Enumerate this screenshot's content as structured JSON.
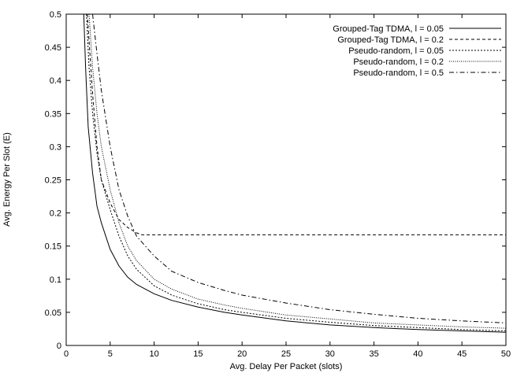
{
  "chart_data": {
    "type": "line",
    "title": "",
    "xlabel": "Avg. Delay Per Packet (slots)",
    "ylabel": "Avg. Energy Per Slot (E)",
    "xlim": [
      0,
      50
    ],
    "ylim": [
      0,
      0.5
    ],
    "xticks": [
      0,
      5,
      10,
      15,
      20,
      25,
      30,
      35,
      40,
      45,
      50
    ],
    "yticks": [
      0,
      0.05,
      0.1,
      0.15,
      0.2,
      0.25,
      0.3,
      0.35,
      0.4,
      0.45,
      0.5
    ],
    "xtick_labels": [
      "0",
      "5",
      "10",
      "15",
      "20",
      "25",
      "30",
      "35",
      "40",
      "45",
      "50"
    ],
    "ytick_labels": [
      "0",
      "0.05",
      "0.1",
      "0.15",
      "0.2",
      "0.25",
      "0.3",
      "0.35",
      "0.4",
      "0.45",
      "0.5"
    ],
    "grid": false,
    "legend_position": "top-right",
    "series": [
      {
        "name": "Grouped-Tag TDMA, l = 0.05",
        "dash": "solid",
        "points": [
          [
            2.0,
            0.5
          ],
          [
            2.2,
            0.42
          ],
          [
            2.5,
            0.33
          ],
          [
            3.0,
            0.26
          ],
          [
            3.5,
            0.21
          ],
          [
            4.0,
            0.185
          ],
          [
            5.0,
            0.145
          ],
          [
            6.0,
            0.12
          ],
          [
            7.0,
            0.103
          ],
          [
            8.0,
            0.092
          ],
          [
            10.0,
            0.078
          ],
          [
            12.0,
            0.068
          ],
          [
            15.0,
            0.058
          ],
          [
            18.0,
            0.05
          ],
          [
            20.0,
            0.046
          ],
          [
            25.0,
            0.037
          ],
          [
            30.0,
            0.031
          ],
          [
            35.0,
            0.027
          ],
          [
            40.0,
            0.024
          ],
          [
            45.0,
            0.022
          ],
          [
            50.0,
            0.02
          ]
        ]
      },
      {
        "name": "Grouped-Tag TDMA, l = 0.2",
        "dash": "dashed",
        "points": [
          [
            2.4,
            0.5
          ],
          [
            3.0,
            0.38
          ],
          [
            3.5,
            0.3
          ],
          [
            4.0,
            0.25
          ],
          [
            5.0,
            0.215
          ],
          [
            6.0,
            0.19
          ],
          [
            7.0,
            0.178
          ],
          [
            8.0,
            0.17
          ],
          [
            8.6,
            0.167
          ],
          [
            10.0,
            0.167
          ],
          [
            20.0,
            0.167
          ],
          [
            30.0,
            0.167
          ],
          [
            40.0,
            0.167
          ],
          [
            50.0,
            0.167
          ]
        ]
      },
      {
        "name": "Pseudo-random, l = 0.05",
        "dash": "dotted",
        "points": [
          [
            2.3,
            0.5
          ],
          [
            2.6,
            0.42
          ],
          [
            3.0,
            0.35
          ],
          [
            3.5,
            0.29
          ],
          [
            4.0,
            0.25
          ],
          [
            5.0,
            0.205
          ],
          [
            6.0,
            0.165
          ],
          [
            7.0,
            0.135
          ],
          [
            8.0,
            0.115
          ],
          [
            10.0,
            0.09
          ],
          [
            12.0,
            0.076
          ],
          [
            15.0,
            0.063
          ],
          [
            18.0,
            0.054
          ],
          [
            20.0,
            0.05
          ],
          [
            25.0,
            0.041
          ],
          [
            30.0,
            0.035
          ],
          [
            35.0,
            0.03
          ],
          [
            40.0,
            0.027
          ],
          [
            45.0,
            0.024
          ],
          [
            50.0,
            0.022
          ]
        ]
      },
      {
        "name": "Pseudo-random, l = 0.2",
        "dash": "fine-dotted",
        "points": [
          [
            2.6,
            0.5
          ],
          [
            3.0,
            0.42
          ],
          [
            3.5,
            0.35
          ],
          [
            4.0,
            0.3
          ],
          [
            5.0,
            0.235
          ],
          [
            6.0,
            0.185
          ],
          [
            7.0,
            0.15
          ],
          [
            8.0,
            0.128
          ],
          [
            10.0,
            0.1
          ],
          [
            12.0,
            0.085
          ],
          [
            15.0,
            0.07
          ],
          [
            18.0,
            0.061
          ],
          [
            20.0,
            0.056
          ],
          [
            25.0,
            0.046
          ],
          [
            30.0,
            0.04
          ],
          [
            35.0,
            0.034
          ],
          [
            40.0,
            0.031
          ],
          [
            45.0,
            0.028
          ],
          [
            50.0,
            0.026
          ]
        ]
      },
      {
        "name": "Pseudo-random, l =  0.5",
        "dash": "dash-dot",
        "points": [
          [
            3.0,
            0.5
          ],
          [
            3.5,
            0.44
          ],
          [
            4.0,
            0.385
          ],
          [
            5.0,
            0.3
          ],
          [
            6.0,
            0.235
          ],
          [
            7.0,
            0.195
          ],
          [
            8.0,
            0.165
          ],
          [
            10.0,
            0.135
          ],
          [
            12.0,
            0.112
          ],
          [
            15.0,
            0.095
          ],
          [
            18.0,
            0.083
          ],
          [
            20.0,
            0.076
          ],
          [
            25.0,
            0.064
          ],
          [
            30.0,
            0.054
          ],
          [
            35.0,
            0.047
          ],
          [
            40.0,
            0.041
          ],
          [
            45.0,
            0.037
          ],
          [
            50.0,
            0.034
          ]
        ]
      }
    ]
  }
}
